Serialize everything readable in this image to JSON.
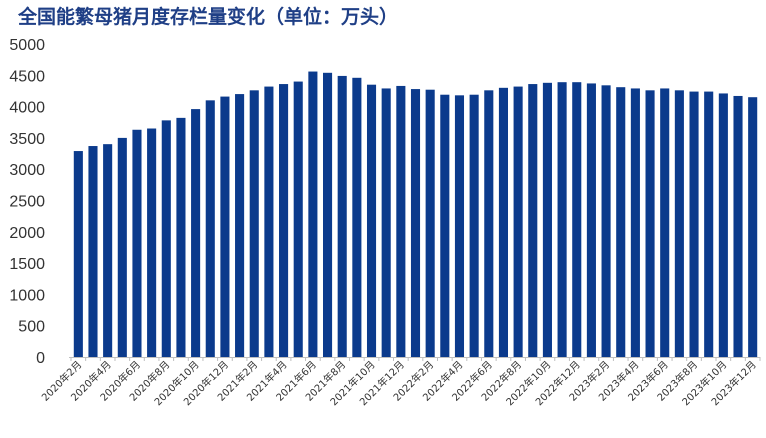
{
  "chart_data": {
    "type": "bar",
    "title": "全国能繁母猪月度存栏量变化（单位：万头）",
    "xlabel": "",
    "ylabel": "",
    "ylim": [
      0,
      5000
    ],
    "y_ticks": [
      "0",
      "500",
      "1000",
      "1500",
      "2000",
      "2500",
      "3000",
      "3500",
      "4000",
      "4500",
      "5000"
    ],
    "grid": false,
    "legend": "none",
    "bar_color": "#0b3a8c",
    "categories": [
      "2020年2月",
      "2020年3月",
      "2020年4月",
      "2020年5月",
      "2020年6月",
      "2020年7月",
      "2020年8月",
      "2020年9月",
      "2020年10月",
      "2020年11月",
      "2020年12月",
      "2021年1月",
      "2021年2月",
      "2021年3月",
      "2021年4月",
      "2021年5月",
      "2021年6月",
      "2021年7月",
      "2021年8月",
      "2021年9月",
      "2021年10月",
      "2021年11月",
      "2021年12月",
      "2022年1月",
      "2022年2月",
      "2022年3月",
      "2022年4月",
      "2022年5月",
      "2022年6月",
      "2022年7月",
      "2022年8月",
      "2022年9月",
      "2022年10月",
      "2022年11月",
      "2022年12月",
      "2023年1月",
      "2023年2月",
      "2023年3月",
      "2023年4月",
      "2023年5月",
      "2023年6月",
      "2023年7月",
      "2023年8月",
      "2023年9月",
      "2023年10月",
      "2023年11月",
      "2023年12月"
    ],
    "x_tick_labels": [
      "2020年2月",
      "2020年4月",
      "2020年6月",
      "2020年8月",
      "2020年10月",
      "2020年12月",
      "2021年2月",
      "2021年4月",
      "2021年6月",
      "2021年8月",
      "2021年10月",
      "2021年12月",
      "2022年2月",
      "2022年4月",
      "2022年6月",
      "2022年8月",
      "2022年10月",
      "2022年12月",
      "2023年2月",
      "2023年4月",
      "2023年6月",
      "2023年8月",
      "2023年10月",
      "2023年12月"
    ],
    "values": [
      3290,
      3370,
      3400,
      3500,
      3630,
      3650,
      3780,
      3820,
      3960,
      4100,
      4160,
      4200,
      4260,
      4320,
      4360,
      4400,
      4560,
      4540,
      4490,
      4460,
      4350,
      4290,
      4330,
      4280,
      4270,
      4190,
      4180,
      4190,
      4260,
      4300,
      4320,
      4360,
      4380,
      4390,
      4390,
      4370,
      4340,
      4310,
      4290,
      4260,
      4290,
      4260,
      4240,
      4240,
      4210,
      4170,
      4150
    ]
  }
}
